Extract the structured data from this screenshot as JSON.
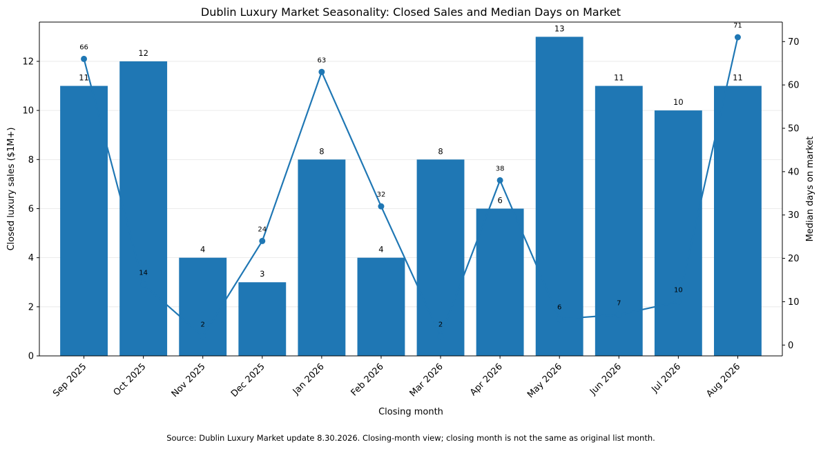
{
  "chart_data": {
    "type": "bar+line",
    "title": "Dublin Luxury Market Seasonality: Closed Sales and Median Days on Market",
    "xlabel": "Closing month",
    "ylabel_left": "Closed luxury sales ($1M+)",
    "ylabel_right": "Median days on market",
    "categories": [
      "Sep 2025",
      "Oct 2025",
      "Nov 2025",
      "Dec 2025",
      "Jan 2026",
      "Feb 2026",
      "Mar 2026",
      "Apr 2026",
      "May 2026",
      "Jun 2026",
      "Jul 2026",
      "Aug 2026"
    ],
    "series": [
      {
        "name": "Closed luxury sales ($1M+)",
        "type": "bar",
        "axis": "left",
        "color": "#1f77b4",
        "values": [
          11,
          12,
          4,
          3,
          8,
          4,
          8,
          6,
          13,
          11,
          10,
          11
        ]
      },
      {
        "name": "Median days on market",
        "type": "line",
        "axis": "right",
        "color": "#1f77b4",
        "values": [
          66,
          14,
          2,
          24,
          63,
          32,
          2,
          38,
          6,
          7,
          10,
          71
        ]
      }
    ],
    "ylim_left": [
      0,
      13.6
    ],
    "ylim_right": [
      -2.5,
      74.5
    ],
    "yticks_left": [
      0,
      2,
      4,
      6,
      8,
      10,
      12
    ],
    "yticks_right": [
      0,
      10,
      20,
      30,
      40,
      50,
      60,
      70
    ],
    "grid": "horizontal",
    "footer": "Source: Dublin Luxury Market update 8.30.2026. Closing-month view; closing month is not the same as original list month."
  }
}
